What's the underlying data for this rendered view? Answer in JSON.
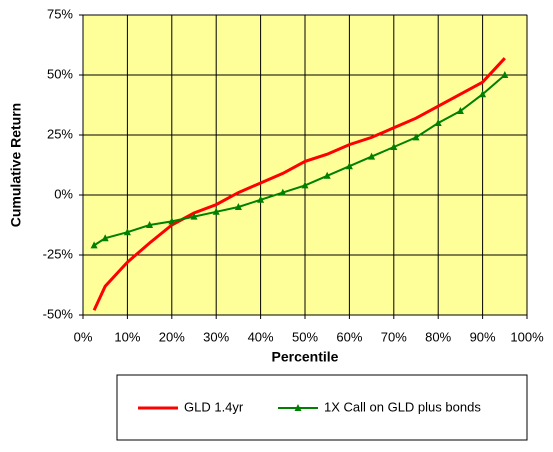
{
  "chart_data": {
    "type": "line",
    "x_label": "Percentile",
    "y_label": "Cumulative Return",
    "x": [
      2.5,
      5,
      10,
      15,
      20,
      25,
      30,
      35,
      40,
      45,
      50,
      55,
      60,
      65,
      70,
      75,
      80,
      85,
      90,
      95
    ],
    "series": [
      {
        "name": "GLD 1.4yr",
        "color": "#ff0000",
        "marker": "none",
        "values": [
          -48,
          -38,
          -28,
          -20,
          -12.5,
          -7.5,
          -4,
          1,
          5,
          9,
          14,
          17,
          21,
          24,
          28,
          32,
          37,
          42,
          47,
          57
        ]
      },
      {
        "name": "1X Call on GLD plus bonds",
        "color": "#008000",
        "marker": "triangle",
        "values": [
          -21,
          -18,
          -15.5,
          -12.5,
          -11,
          -9,
          -7,
          -5,
          -2,
          1,
          4,
          8,
          12,
          16,
          20,
          24,
          30,
          35,
          42,
          50
        ]
      }
    ],
    "xlim": [
      0,
      100
    ],
    "xticks": [
      {
        "value": 0,
        "label": "0%"
      },
      {
        "value": 10,
        "label": "10%"
      },
      {
        "value": 20,
        "label": "20%"
      },
      {
        "value": 30,
        "label": "30%"
      },
      {
        "value": 40,
        "label": "40%"
      },
      {
        "value": 50,
        "label": "50%"
      },
      {
        "value": 60,
        "label": "60%"
      },
      {
        "value": 70,
        "label": "70%"
      },
      {
        "value": 80,
        "label": "80%"
      },
      {
        "value": 90,
        "label": "90%"
      },
      {
        "value": 100,
        "label": "100%"
      }
    ],
    "ylim": [
      -50,
      75
    ],
    "yticks": [
      {
        "value": -50,
        "label": "-50%"
      },
      {
        "value": -25,
        "label": "-25%"
      },
      {
        "value": 0,
        "label": "0%"
      },
      {
        "value": 25,
        "label": "25%"
      },
      {
        "value": 50,
        "label": "50%"
      },
      {
        "value": 75,
        "label": "75%"
      }
    ],
    "grid": true,
    "plot_background": "#ffff99",
    "legend": "bottom"
  }
}
